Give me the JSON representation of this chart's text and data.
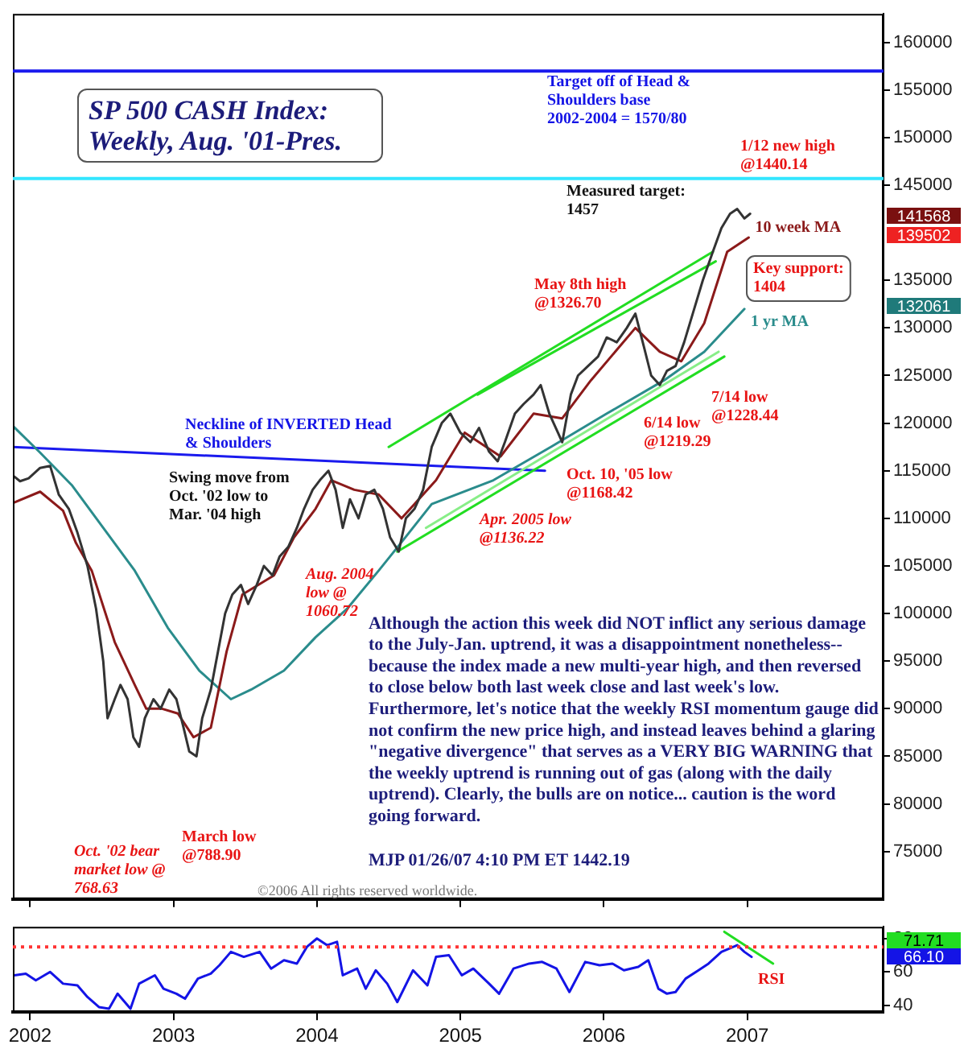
{
  "chart_data": [
    {
      "type": "line",
      "title": "SP 500 CASH Index: Weekly, Aug. '01-Pres.",
      "xlim": [
        2001.88,
        2007.95
      ],
      "xticks": [
        2002,
        2003,
        2004,
        2005,
        2006,
        2007
      ],
      "ylim": [
        70000,
        163000
      ],
      "yticks": [
        75000,
        80000,
        85000,
        90000,
        95000,
        100000,
        105000,
        110000,
        115000,
        120000,
        125000,
        130000,
        135000,
        145000,
        150000,
        155000,
        160000
      ],
      "tick_labels": "y",
      "series": [
        {
          "color": "#333333",
          "x": [
            2001.88,
            2001.93,
            2001.99,
            2002.07,
            2002.14,
            2002.2,
            2002.27,
            2002.33,
            2002.4,
            2002.46,
            2002.51,
            2002.54,
            2002.59,
            2002.63,
            2002.68,
            2002.72,
            2002.76,
            2002.8,
            2002.86,
            2002.91,
            2002.97,
            2003.02,
            2003.07,
            2003.11,
            2003.16,
            2003.2,
            2003.26,
            2003.31,
            2003.36,
            2003.41,
            2003.47,
            2003.52,
            2003.58,
            2003.63,
            2003.69,
            2003.74,
            2003.8,
            2003.86,
            2003.91,
            2003.97,
            2004.02,
            2004.08,
            2004.13,
            2004.18,
            2004.23,
            2004.29,
            2004.34,
            2004.4,
            2004.46,
            2004.51,
            2004.57,
            2004.62,
            2004.68,
            2004.74,
            2004.8,
            2004.87,
            2004.93,
            2005.0,
            2005.07,
            2005.13,
            2005.2,
            2005.26,
            2005.31,
            2005.38,
            2005.44,
            2005.51,
            2005.56,
            2005.62,
            2005.68,
            2005.71,
            2005.77,
            2005.82,
            2005.89,
            2005.96,
            2006.02,
            2006.09,
            2006.16,
            2006.22,
            2006.28,
            2006.33,
            2006.39,
            2006.44,
            2006.5,
            2006.56,
            2006.62,
            2006.69,
            2006.76,
            2006.82,
            2006.88,
            2006.93,
            2006.98,
            2007.02
          ],
          "values": [
            114500,
            113900,
            114200,
            115300,
            115500,
            112500,
            111000,
            108500,
            105000,
            100500,
            95000,
            89000,
            91000,
            92500,
            91000,
            87000,
            86000,
            89000,
            91000,
            90000,
            92000,
            91000,
            88000,
            85500,
            85000,
            89000,
            92000,
            96000,
            100000,
            102000,
            103000,
            101000,
            103000,
            105000,
            104000,
            106000,
            107000,
            109000,
            111000,
            113000,
            114000,
            115000,
            113000,
            109000,
            112000,
            110000,
            112500,
            113000,
            111000,
            108000,
            106500,
            110000,
            111000,
            113000,
            117500,
            120000,
            121000,
            119000,
            118000,
            119500,
            117000,
            116000,
            118000,
            121000,
            122000,
            123000,
            124000,
            121000,
            119000,
            118000,
            123000,
            125000,
            126000,
            127000,
            129000,
            128500,
            130000,
            131500,
            128000,
            125000,
            124000,
            125500,
            126000,
            128500,
            131500,
            135000,
            138000,
            140500,
            142000,
            142500,
            141500,
            142000
          ]
        },
        {
          "name": "10 week MA",
          "color": "#8b1a1a",
          "x": [
            2001.88,
            2002.07,
            2002.23,
            2002.32,
            2002.43,
            2002.59,
            2002.73,
            2002.81,
            2002.92,
            2003.03,
            2003.14,
            2003.26,
            2003.37,
            2003.48,
            2003.7,
            2003.84,
            2003.99,
            2004.1,
            2004.26,
            2004.43,
            2004.59,
            2004.83,
            2005.03,
            2005.28,
            2005.51,
            2005.71,
            2005.91,
            2006.22,
            2006.39,
            2006.54,
            2006.7,
            2006.86,
            2007.01
          ],
          "values": [
            111600,
            112800,
            110800,
            107400,
            104500,
            97000,
            92500,
            90000,
            90000,
            89500,
            87000,
            88000,
            96000,
            102000,
            104000,
            108000,
            111000,
            114000,
            113000,
            112500,
            110000,
            114000,
            119000,
            116500,
            121000,
            120500,
            124500,
            130000,
            127500,
            126500,
            130500,
            138000,
            139500
          ]
        },
        {
          "name": "1 yr MA",
          "color": "#2a8c8c",
          "x": [
            2001.88,
            2002.07,
            2002.29,
            2002.51,
            2002.73,
            2002.96,
            2003.18,
            2003.4,
            2003.54,
            2003.77,
            2003.99,
            2004.21,
            2004.43,
            2004.59,
            2004.8,
            2005.23,
            2005.63,
            2006.02,
            2006.42,
            2006.7,
            2006.98
          ],
          "values": [
            119700,
            116900,
            113500,
            109000,
            104500,
            98500,
            94000,
            91000,
            92000,
            94000,
            97500,
            100500,
            104500,
            107500,
            111500,
            114000,
            117500,
            121000,
            124500,
            127500,
            132000
          ]
        },
        {
          "color": "#22dd22",
          "x": [
            2004.5,
            2006.76
          ],
          "values": [
            117500,
            138000
          ]
        },
        {
          "color": "#22dd22",
          "x": [
            2005.12,
            2006.78
          ],
          "values": [
            123000,
            137000
          ]
        },
        {
          "color": "#22dd22",
          "x": [
            2004.56,
            2006.84
          ],
          "values": [
            106500,
            127000
          ]
        },
        {
          "color": "#88ee88",
          "x": [
            2004.76,
            2006.8
          ],
          "values": [
            109000,
            127500
          ]
        },
        {
          "color": "#1a1aee",
          "x": [
            2001.88,
            2005.59
          ],
          "values": [
            117500,
            115000
          ]
        }
      ],
      "ref_lines": [
        {
          "axis": "y",
          "value": 157000,
          "color": "#1a1aee"
        },
        {
          "axis": "y",
          "value": 145700,
          "color": "#33e6ff"
        }
      ],
      "annotations": [
        "Oct. '02 bear market low @ 768.63",
        "March low @788.90",
        "Aug. 2004 low @ 1060.72",
        "Apr. 2005 low @1136.22",
        "Oct. 10, '05 low @1168.42",
        "6/14 low @1219.29",
        "7/14 low @1228.44",
        "May 8th high @1326.70",
        "1/12 new high @1440.14",
        "Key support: 1404",
        "141568",
        "139502",
        "132061",
        "Neckline of INVERTED Head & Shoulders",
        "Swing move from Oct. '02 low to Mar. '04 high",
        "Although the action this week did NOT inflict any serious damage to the July-Jan. uptrend, it was a disappointment nonetheless-- because the index made a new multi-year high, and then reversed to close below both last week close and last week's low. Furthermore, let's notice that the weekly RSI momentum gauge did not confirm the new price high, and instead leaves behind a glaring \"negative divergence\" that serves as a VERY BIG WARNING that the weekly uptrend is running out of gas (along with the daily uptrend). Clearly, the bulls are on notice... caution is the word going forward.",
        "MJP 01/26/07 4:10 PM ET 1442.19",
        "©2006 All rights reserved worldwide.",
        "Target off of Head & Shoulders base 2002-2004 = 1570/80",
        "Measured target: 1457"
      ]
    },
    {
      "type": "line",
      "xlim": [
        2001.88,
        2007.95
      ],
      "xticks": [
        2002,
        2003,
        2004,
        2005,
        2006,
        2007
      ],
      "ylim": [
        36,
        87
      ],
      "yticks": [
        40,
        60,
        80
      ],
      "series": [
        {
          "name": "RSI",
          "color": "#1414e6",
          "x": [
            2001.89,
            2001.97,
            2002.04,
            2002.14,
            2002.23,
            2002.33,
            2002.4,
            2002.48,
            2002.55,
            2002.61,
            2002.7,
            2002.76,
            2002.87,
            2002.93,
            2003.02,
            2003.08,
            2003.17,
            2003.26,
            2003.32,
            2003.4,
            2003.49,
            2003.6,
            2003.68,
            2003.77,
            2003.86,
            2003.93,
            2004.0,
            2004.07,
            2004.14,
            2004.18,
            2004.28,
            2004.34,
            2004.41,
            2004.49,
            2004.56,
            2004.67,
            2004.77,
            2004.83,
            2004.92,
            2005.01,
            2005.09,
            2005.2,
            2005.27,
            2005.37,
            2005.48,
            2005.57,
            2005.67,
            2005.76,
            2005.87,
            2005.97,
            2006.06,
            2006.14,
            2006.24,
            2006.31,
            2006.38,
            2006.44,
            2006.5,
            2006.57,
            2006.66,
            2006.73,
            2006.82,
            2006.93,
            2006.98,
            2007.03
          ],
          "values": [
            58,
            59,
            55,
            60,
            53,
            52,
            45,
            39,
            38,
            47,
            38,
            53,
            58,
            50,
            47,
            44,
            56,
            59,
            64,
            72,
            69,
            72,
            62,
            67,
            65,
            75,
            80,
            76,
            78,
            58,
            62,
            50,
            61,
            53,
            42,
            61,
            52,
            69,
            70,
            58,
            62,
            53,
            47,
            62,
            65,
            66,
            62,
            48,
            66,
            64,
            65,
            61,
            63,
            67,
            50,
            47,
            48,
            56,
            61,
            65,
            72,
            76,
            72,
            69
          ]
        },
        {
          "color": "#22dd22",
          "x": [
            2006.84,
            2007.18
          ],
          "values": [
            84,
            65
          ]
        }
      ],
      "ref_lines": [
        {
          "axis": "y",
          "value": 75,
          "color": "#ff3333",
          "line_style": "dotted"
        }
      ],
      "annotations": [
        "71.71",
        "66.10"
      ]
    }
  ]
}
